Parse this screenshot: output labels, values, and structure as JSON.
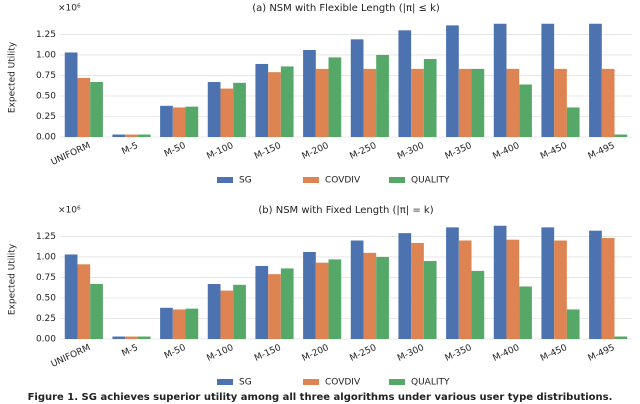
{
  "chart_data": [
    {
      "type": "bar",
      "title": "(a) NSM with Flexible Length (|π| ≤ k)",
      "y_label": "Expected Utility",
      "y_offset_label": "×10⁶",
      "categories": [
        "UNIFORM",
        "M-5",
        "M-50",
        "M-100",
        "M-150",
        "M-200",
        "M-250",
        "M-300",
        "M-350",
        "M-400",
        "M-450",
        "M-495"
      ],
      "series": [
        {
          "name": "SG",
          "color": "#4c72b0",
          "values": [
            1.03,
            0.03,
            0.38,
            0.67,
            0.89,
            1.06,
            1.19,
            1.3,
            1.36,
            1.38,
            1.38,
            1.38
          ]
        },
        {
          "name": "COVDIV",
          "color": "#dd8452",
          "values": [
            0.72,
            0.03,
            0.36,
            0.59,
            0.79,
            0.83,
            0.83,
            0.83,
            0.83,
            0.83,
            0.83,
            0.83
          ]
        },
        {
          "name": "QUALITY",
          "color": "#55a868",
          "values": [
            0.67,
            0.03,
            0.37,
            0.66,
            0.86,
            0.97,
            1.0,
            0.95,
            0.83,
            0.64,
            0.36,
            0.03
          ]
        }
      ],
      "ylim": [
        0,
        1.45
      ],
      "yticks": [
        {
          "value": 0,
          "label": "0.00"
        },
        {
          "value": 0.25,
          "label": "0.25"
        },
        {
          "value": 0.5,
          "label": "0.50"
        },
        {
          "value": 0.75,
          "label": "0.75"
        },
        {
          "value": 1,
          "label": "1.00"
        },
        {
          "value": 1.25,
          "label": "1.25"
        }
      ],
      "grid": true,
      "legend": "bottom"
    },
    {
      "type": "bar",
      "title": "(b) NSM with Fixed Length (|π| = k)",
      "y_label": "Expected Utility",
      "y_offset_label": "×10⁶",
      "categories": [
        "UNIFORM",
        "M-5",
        "M-50",
        "M-100",
        "M-150",
        "M-200",
        "M-250",
        "M-300",
        "M-350",
        "M-400",
        "M-450",
        "M-495"
      ],
      "series": [
        {
          "name": "SG",
          "color": "#4c72b0",
          "values": [
            1.03,
            0.03,
            0.38,
            0.67,
            0.89,
            1.06,
            1.2,
            1.29,
            1.36,
            1.38,
            1.36,
            1.32
          ]
        },
        {
          "name": "COVDIV",
          "color": "#dd8452",
          "values": [
            0.91,
            0.03,
            0.36,
            0.59,
            0.79,
            0.93,
            1.05,
            1.17,
            1.2,
            1.21,
            1.2,
            1.23
          ]
        },
        {
          "name": "QUALITY",
          "color": "#55a868",
          "values": [
            0.67,
            0.03,
            0.37,
            0.66,
            0.86,
            0.97,
            1.0,
            0.95,
            0.83,
            0.64,
            0.36,
            0.03
          ]
        }
      ],
      "ylim": [
        0,
        1.45
      ],
      "yticks": [
        {
          "value": 0,
          "label": "0.00"
        },
        {
          "value": 0.25,
          "label": "0.25"
        },
        {
          "value": 0.5,
          "label": "0.50"
        },
        {
          "value": 0.75,
          "label": "0.75"
        },
        {
          "value": 1,
          "label": "1.00"
        },
        {
          "value": 1.25,
          "label": "1.25"
        }
      ],
      "grid": true,
      "legend": "bottom"
    }
  ],
  "caption": "Figure 1. SG achieves superior utility among all three algorithms under various user type distributions."
}
